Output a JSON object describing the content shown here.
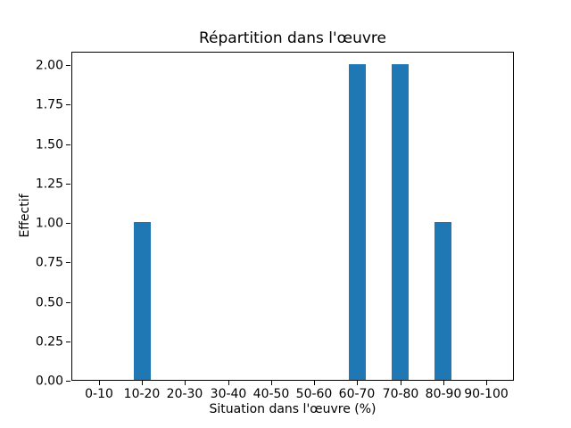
{
  "figure": {
    "background": "#ffffff",
    "spine_color": "#000000",
    "text_color": "#000000"
  },
  "chart_data": {
    "type": "bar",
    "title": "Répartition dans l'œuvre",
    "xlabel": "Situation dans l'œuvre (%)",
    "ylabel": "Effectif",
    "categories": [
      "0-10",
      "10-20",
      "20-30",
      "30-40",
      "40-50",
      "50-60",
      "60-70",
      "70-80",
      "80-90",
      "90-100"
    ],
    "values": [
      0,
      1,
      0,
      0,
      0,
      0,
      2,
      2,
      1,
      0
    ],
    "ytick_labels": [
      "0.00",
      "0.25",
      "0.50",
      "0.75",
      "1.00",
      "1.25",
      "1.50",
      "1.75",
      "2.00"
    ],
    "ylim": [
      0,
      2.085
    ],
    "bar_color": "#1f77b4",
    "grid": false,
    "legend": "none"
  }
}
